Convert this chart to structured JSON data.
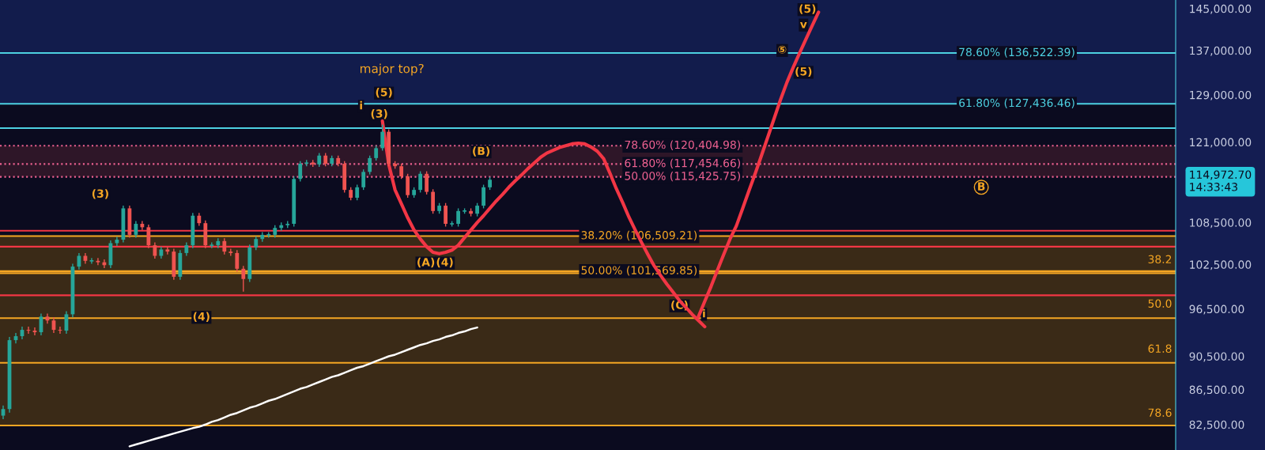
{
  "chart_data": {
    "type": "candlestick",
    "log": true,
    "grid": false,
    "tick_labels": "y",
    "ylim": [
      79700,
      146700
    ],
    "yticks": [
      {
        "value": 145000,
        "label": "145,000.00"
      },
      {
        "value": 137000,
        "label": "137,000.00"
      },
      {
        "value": 129000,
        "label": "129,000.00"
      },
      {
        "value": 121000,
        "label": "121,000.00"
      },
      {
        "value": 114972.7,
        "label": "114,972.70\n14:33:43"
      },
      {
        "value": 108500,
        "label": "108,500.00"
      },
      {
        "value": 102500,
        "label": "102,500.00"
      },
      {
        "value": 96500,
        "label": "96,500.00"
      },
      {
        "value": 90500,
        "label": "90,500.00"
      },
      {
        "value": 86500,
        "label": "86,500.00"
      },
      {
        "value": 82500,
        "label": "82,500.00"
      }
    ],
    "categories": [
      null,
      null,
      null,
      null,
      null,
      null,
      null,
      null,
      null,
      null,
      null,
      null,
      null,
      null,
      null,
      null,
      null,
      null,
      null,
      null,
      null,
      null,
      null,
      null,
      null,
      null,
      null,
      null,
      null,
      null,
      null,
      null,
      null,
      null,
      null,
      null,
      null,
      null,
      null,
      null,
      null,
      null,
      null,
      null,
      null,
      null,
      null,
      null,
      null,
      null,
      null,
      null,
      null,
      null,
      null,
      null,
      null,
      null,
      null,
      null,
      null,
      null,
      null,
      null,
      null,
      null,
      null,
      null,
      null,
      null,
      null,
      null,
      null,
      null,
      null,
      null,
      null,
      null,
      null,
      null,
      null,
      null,
      null,
      null,
      null,
      null,
      null,
      null,
      null,
      null,
      null,
      null,
      null,
      null,
      null,
      null,
      null,
      null,
      null,
      null,
      null,
      null,
      null,
      null,
      null,
      null,
      null,
      null,
      null,
      null,
      null,
      null,
      null,
      null,
      null,
      null,
      null,
      null,
      null,
      null,
      null,
      null,
      null,
      null,
      null,
      null,
      null,
      null,
      null,
      null,
      null,
      null,
      null,
      null,
      null,
      null,
      null,
      null,
      null,
      null,
      null,
      null,
      null,
      null,
      null,
      null,
      null,
      null,
      null,
      null,
      null,
      null,
      null,
      null,
      null,
      null,
      null,
      null,
      null,
      null,
      null,
      null,
      null,
      null,
      null,
      null,
      null,
      null,
      null,
      null,
      null,
      null,
      null,
      null,
      null,
      null,
      null,
      null,
      null,
      null,
      null,
      null,
      null,
      null,
      null,
      null
    ],
    "ohlc": [
      [
        83500,
        84650,
        83100,
        84250
      ],
      [
        84250,
        92900,
        83850,
        92500
      ],
      [
        92500,
        93400,
        92100,
        93000
      ],
      [
        93000,
        94200,
        92600,
        93800
      ],
      [
        93800,
        94200,
        93300,
        93700
      ],
      [
        93700,
        94100,
        93100,
        93500
      ],
      [
        93500,
        95900,
        93100,
        95500
      ],
      [
        95500,
        95900,
        94600,
        95000
      ],
      [
        95000,
        95400,
        93400,
        93800
      ],
      [
        93800,
        94200,
        93300,
        93700
      ],
      [
        93700,
        96200,
        93300,
        95800
      ],
      [
        95800,
        102600,
        95400,
        102200
      ],
      [
        102200,
        104100,
        101800,
        103700
      ],
      [
        103700,
        104100,
        102600,
        103000
      ],
      [
        103000,
        103400,
        102600,
        103000
      ],
      [
        103000,
        103400,
        102400,
        102800
      ],
      [
        102800,
        103200,
        102000,
        102400
      ],
      [
        102400,
        105900,
        102000,
        105500
      ],
      [
        105500,
        106400,
        105100,
        106000
      ],
      [
        106000,
        111000,
        105600,
        110600
      ],
      [
        110600,
        111000,
        106300,
        106700
      ],
      [
        106700,
        108700,
        106300,
        108300
      ],
      [
        108300,
        108700,
        107400,
        107800
      ],
      [
        107800,
        108200,
        104800,
        105200
      ],
      [
        105200,
        105600,
        103300,
        103700
      ],
      [
        103700,
        105000,
        103300,
        104600
      ],
      [
        104600,
        105000,
        103900,
        104300
      ],
      [
        104300,
        104700,
        100400,
        100800
      ],
      [
        100800,
        104500,
        100400,
        104100
      ],
      [
        104100,
        105600,
        103700,
        105200
      ],
      [
        105200,
        109900,
        104800,
        109500
      ],
      [
        109500,
        109900,
        108000,
        108400
      ],
      [
        108400,
        108800,
        104800,
        105200
      ],
      [
        105200,
        105600,
        104800,
        105200
      ],
      [
        105200,
        106200,
        104800,
        105800
      ],
      [
        105800,
        106200,
        103900,
        104300
      ],
      [
        104300,
        104700,
        103700,
        104100
      ],
      [
        104100,
        104500,
        101500,
        101900
      ],
      [
        101900,
        102300,
        98800,
        100500
      ],
      [
        100500,
        105300,
        100100,
        104900
      ],
      [
        104900,
        106500,
        104500,
        106100
      ],
      [
        106100,
        107100,
        105700,
        106700
      ],
      [
        106700,
        107100,
        106300,
        106700
      ],
      [
        106700,
        108100,
        106300,
        107700
      ],
      [
        107700,
        108500,
        107300,
        108100
      ],
      [
        108100,
        108700,
        107700,
        108300
      ],
      [
        108300,
        115500,
        107900,
        115100
      ],
      [
        115100,
        117900,
        114700,
        117500
      ],
      [
        117500,
        118100,
        117100,
        117700
      ],
      [
        117700,
        118100,
        117000,
        117400
      ],
      [
        117400,
        119200,
        117000,
        118800
      ],
      [
        118800,
        119200,
        117100,
        117500
      ],
      [
        117500,
        118800,
        117100,
        118400
      ],
      [
        118400,
        118800,
        117100,
        117500
      ],
      [
        117500,
        117900,
        113000,
        113400
      ],
      [
        113400,
        113800,
        111800,
        112200
      ],
      [
        112200,
        114200,
        111800,
        113800
      ],
      [
        113800,
        116600,
        113400,
        116200
      ],
      [
        116200,
        118800,
        115800,
        118400
      ],
      [
        118400,
        120400,
        118000,
        120000
      ],
      [
        120000,
        123900,
        119600,
        122700
      ],
      [
        122700,
        123100,
        117100,
        117500
      ],
      [
        117500,
        117900,
        116700,
        117100
      ],
      [
        117100,
        117500,
        115100,
        115500
      ],
      [
        115500,
        115900,
        112200,
        112600
      ],
      [
        112600,
        113800,
        112200,
        113400
      ],
      [
        113400,
        116300,
        113000,
        115900
      ],
      [
        115900,
        116300,
        112700,
        113100
      ],
      [
        113100,
        113500,
        109800,
        110200
      ],
      [
        110200,
        111400,
        109800,
        111000
      ],
      [
        111000,
        111400,
        107900,
        108300
      ],
      [
        108300,
        108700,
        107900,
        108300
      ],
      [
        108300,
        110600,
        107900,
        110200
      ],
      [
        110200,
        110600,
        109800,
        110200
      ],
      [
        110200,
        110600,
        109400,
        109800
      ],
      [
        109800,
        111400,
        109400,
        111000
      ],
      [
        111000,
        114200,
        110600,
        113800
      ],
      [
        113800,
        115400,
        113400,
        114972.7
      ],
      null,
      null,
      null,
      null,
      null,
      null,
      null,
      null,
      null,
      null,
      null,
      null,
      null,
      null,
      null,
      null,
      null,
      null,
      null,
      null,
      null,
      null,
      null,
      null,
      null,
      null,
      null,
      null,
      null,
      null,
      null,
      null,
      null,
      null,
      null,
      null,
      null,
      null,
      null,
      null,
      null,
      null,
      null,
      null,
      null,
      null,
      null,
      null,
      null,
      null,
      null,
      null,
      null,
      null,
      null,
      null,
      null,
      null,
      null,
      null,
      null,
      null,
      null,
      null,
      null,
      null,
      null,
      null,
      null,
      null,
      null,
      null,
      null,
      null,
      null,
      null,
      null,
      null,
      null,
      null,
      null,
      null,
      null,
      null,
      null,
      null,
      null,
      null,
      null,
      null,
      null,
      null,
      null,
      null,
      null,
      null,
      null,
      null,
      null,
      null,
      null,
      null,
      null,
      null,
      null,
      null,
      null,
      null
    ],
    "series": [
      {
        "type": "line",
        "color": "#ffffff",
        "values": [
          null,
          null,
          null,
          null,
          null,
          null,
          null,
          null,
          null,
          null,
          null,
          null,
          null,
          null,
          null,
          null,
          null,
          null,
          null,
          null,
          80100,
          80300,
          80500,
          80700,
          80900,
          81100,
          81300,
          81500,
          81700,
          81900,
          82100,
          82250,
          82500,
          82800,
          83000,
          83300,
          83600,
          83800,
          84100,
          84400,
          84600,
          84900,
          85200,
          85400,
          85700,
          86000,
          86300,
          86600,
          86800,
          87100,
          87400,
          87700,
          88000,
          88200,
          88500,
          88800,
          89100,
          89300,
          89600,
          89900,
          90200,
          90500,
          90700,
          91000,
          91300,
          91600,
          91900,
          92100,
          92400,
          92600,
          92900,
          93100,
          93400,
          93600,
          93900,
          94100,
          null,
          null,
          null,
          null,
          null,
          null,
          null,
          null,
          null,
          null,
          null,
          null,
          null,
          null,
          null,
          null,
          null,
          null,
          null,
          null,
          null,
          null,
          null,
          null,
          null,
          null,
          null,
          null,
          null,
          null,
          null,
          null,
          null,
          null,
          null,
          null,
          null,
          null,
          null,
          null,
          null,
          null,
          null,
          null,
          null,
          null,
          null,
          null,
          null,
          null,
          null,
          null,
          null,
          null,
          null,
          null,
          null,
          null,
          null,
          null,
          null,
          null,
          null,
          null,
          null,
          null,
          null,
          null,
          null,
          null,
          null,
          null,
          null,
          null,
          null,
          null,
          null,
          null,
          null,
          null,
          null,
          null,
          null,
          null,
          null,
          null,
          null,
          null,
          null,
          null,
          null,
          null,
          null,
          null,
          null,
          null,
          null,
          null,
          null,
          null,
          null,
          null,
          null,
          null,
          null,
          null,
          null,
          null,
          null,
          null
        ]
      },
      {
        "type": "line",
        "color": "#f23645",
        "values": [
          null,
          null,
          null,
          null,
          null,
          null,
          null,
          null,
          null,
          null,
          null,
          null,
          null,
          null,
          null,
          null,
          null,
          null,
          null,
          null,
          null,
          null,
          null,
          null,
          null,
          null,
          null,
          null,
          null,
          null,
          null,
          null,
          null,
          null,
          null,
          null,
          null,
          null,
          null,
          null,
          null,
          null,
          null,
          null,
          null,
          null,
          null,
          null,
          null,
          null,
          null,
          null,
          null,
          null,
          null,
          null,
          null,
          null,
          null,
          null,
          124500,
          117400,
          113400,
          111300,
          109200,
          107400,
          106100,
          105000,
          104200,
          104000,
          104200,
          104500,
          105200,
          106300,
          107400,
          108500,
          109500,
          110600,
          111700,
          112700,
          113800,
          114800,
          115700,
          116700,
          117600,
          118500,
          119200,
          119650,
          120100,
          120400,
          120700,
          120800,
          120700,
          120200,
          119500,
          118300,
          116000,
          113600,
          111500,
          109300,
          107400,
          105600,
          103900,
          102300,
          101000,
          99800,
          98700,
          97600,
          96700,
          95800,
          95000,
          94200,
          null,
          null,
          null,
          null,
          null,
          null,
          null,
          null,
          null,
          null,
          null,
          null,
          null,
          null,
          null,
          null,
          null,
          null,
          null,
          null,
          null,
          null,
          null,
          null,
          null,
          null,
          null,
          null,
          null,
          null,
          null,
          null,
          null,
          null,
          null,
          null,
          null,
          null,
          null,
          null,
          null,
          null,
          null,
          null,
          null,
          null,
          null,
          null,
          null,
          null,
          null,
          null,
          null,
          null,
          null,
          null,
          null,
          null,
          null,
          null,
          null,
          null,
          null,
          null,
          null,
          null,
          null,
          null,
          null,
          null,
          null,
          null,
          null,
          null
        ]
      },
      {
        "type": "line",
        "color": "#f23645",
        "values": [
          null,
          null,
          null,
          null,
          null,
          null,
          null,
          null,
          null,
          null,
          null,
          null,
          null,
          null,
          null,
          null,
          null,
          null,
          null,
          null,
          null,
          null,
          null,
          null,
          null,
          null,
          null,
          null,
          null,
          null,
          null,
          null,
          null,
          null,
          null,
          null,
          null,
          null,
          null,
          null,
          null,
          null,
          null,
          null,
          null,
          null,
          null,
          null,
          null,
          null,
          null,
          null,
          null,
          null,
          null,
          null,
          null,
          null,
          null,
          null,
          null,
          null,
          null,
          null,
          null,
          null,
          null,
          null,
          null,
          null,
          null,
          null,
          null,
          null,
          null,
          null,
          null,
          null,
          null,
          null,
          null,
          null,
          null,
          null,
          null,
          null,
          null,
          null,
          null,
          null,
          null,
          null,
          null,
          null,
          null,
          null,
          null,
          null,
          null,
          null,
          null,
          null,
          null,
          null,
          null,
          null,
          null,
          null,
          null,
          null,
          95500,
          97500,
          99500,
          101700,
          103900,
          106100,
          108000,
          110600,
          113300,
          116000,
          118900,
          121900,
          125000,
          128200,
          131200,
          133900,
          136500,
          139100,
          141700,
          144300,
          null,
          null,
          null,
          null,
          null,
          null,
          null,
          null,
          null,
          null,
          null,
          null,
          null,
          null,
          null,
          null,
          null,
          null,
          null,
          null,
          null,
          null,
          null,
          null,
          null,
          null,
          null,
          null,
          null,
          null,
          null,
          null,
          null,
          null,
          null,
          null,
          null,
          null,
          null,
          null,
          null,
          null,
          null,
          null,
          null,
          null,
          null,
          null,
          null,
          null,
          null,
          null,
          null,
          null,
          null,
          null
        ]
      }
    ],
    "ref_lines": [
      {
        "axis": "y",
        "value": 136522.39,
        "label": "78.60% (136,522.39)",
        "color": "#4dd0e1"
      },
      {
        "axis": "y",
        "value": 127436.46,
        "label": "61.80% (127,436.46)",
        "color": "#4dd0e1"
      },
      {
        "axis": "y",
        "value": 123300,
        "color": "#4dd0e1"
      },
      {
        "axis": "y",
        "value": 120404.98,
        "label": "78.60% (120,404.98)",
        "color": "#f06292",
        "line_style": "dotted"
      },
      {
        "axis": "y",
        "value": 117454.66,
        "label": "61.80% (117,454.66)",
        "color": "#f06292",
        "line_style": "dotted"
      },
      {
        "axis": "y",
        "value": 115425.75,
        "label": "50.00% (115,425.75)",
        "color": "#f06292",
        "line_style": "dotted"
      },
      {
        "axis": "y",
        "value": 106509.21,
        "label": "38.20% (106,509.21)",
        "color": "#f5a623"
      },
      {
        "axis": "y",
        "value": 101569.85,
        "label": "50.00% (101,569.85)",
        "color": "#f5a623"
      },
      {
        "axis": "y",
        "value": 101300,
        "color": "#f5a623"
      },
      {
        "axis": "y",
        "value": 95300,
        "color": "#f5a623"
      },
      {
        "axis": "y",
        "value": 89700,
        "color": "#f5a623"
      },
      {
        "axis": "y",
        "value": 82400,
        "color": "#f5a623"
      },
      {
        "axis": "y",
        "value": 107300,
        "color": "#f23645"
      },
      {
        "axis": "y",
        "value": 105000,
        "color": "#f23645"
      },
      {
        "axis": "y",
        "value": 98300,
        "color": "#f23645"
      }
    ],
    "bands": [
      {
        "axis": "y",
        "from": 127436.46,
        "to": 146700,
        "color": "#121c4c"
      },
      {
        "axis": "y",
        "from": 115425.75,
        "to": 120404.98,
        "color": "#2e1628"
      },
      {
        "axis": "y",
        "from": 101569.85,
        "to": 106509.21,
        "color": "#3a2a17"
      },
      {
        "axis": "y",
        "from": 82400,
        "to": 101300,
        "color": "#3a2a17"
      }
    ],
    "annotations": [
      {
        "text": "(3)",
        "y": 112700
      },
      {
        "text": "(4)",
        "y": 95400
      },
      "major top?",
      {
        "text": "i",
        "y": 127000
      },
      {
        "text": "(5)",
        "y": 129300
      },
      {
        "text": "(3)",
        "y": 125600
      },
      {
        "text": "(B)",
        "y": 119400
      },
      {
        "text": "(A)",
        "y": 102700
      },
      {
        "text": "(4)",
        "y": 102700
      },
      {
        "text": "(C)",
        "y": 96900
      },
      {
        "text": "i",
        "y": 95800
      },
      {
        "text": "(5)",
        "y": 144800
      },
      {
        "text": "v",
        "y": 141800
      },
      {
        "text": "⑤",
        "y": 137000
      },
      {
        "text": "(5)",
        "y": 133000
      },
      {
        "text": "B",
        "y": 113800
      },
      "38.2",
      "50.0",
      "61.8",
      "78.6"
    ]
  }
}
